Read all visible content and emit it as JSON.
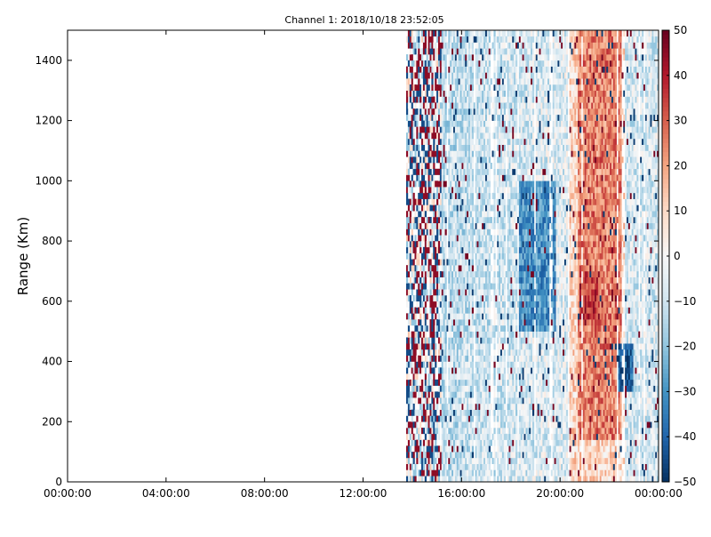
{
  "chart_data": {
    "type": "heatmap",
    "title": "Channel 1: 2018/10/18 23:52:05",
    "xlabel": "",
    "ylabel": "Range (Km)",
    "x_ticks": [
      "00:00:00",
      "04:00:00",
      "08:00:00",
      "12:00:00",
      "16:00:00",
      "20:00:00",
      "00:00:00"
    ],
    "x_range_hours": [
      0,
      24
    ],
    "y_ticks": [
      0,
      200,
      400,
      600,
      800,
      1000,
      1200,
      1400
    ],
    "ylim": [
      0,
      1500
    ],
    "data_x_range_hours": [
      13.75,
      24
    ],
    "colorbar": {
      "colormap": "RdBu_r",
      "range": [
        -50,
        50
      ],
      "ticks": [
        50,
        40,
        30,
        20,
        10,
        0,
        -10,
        -20,
        -30,
        -40,
        -50
      ]
    },
    "features": [
      {
        "desc": "positive band",
        "hours": [
          20.7,
          22.5
        ],
        "range": [
          150,
          1500
        ],
        "value": 25
      },
      {
        "desc": "strong positive core",
        "hours": [
          20.8,
          21.6
        ],
        "range": [
          550,
          700
        ],
        "value": 35
      },
      {
        "desc": "strong negative core",
        "hours": [
          22.3,
          23.0
        ],
        "range": [
          300,
          450
        ],
        "value": -40
      },
      {
        "desc": "negative band",
        "hours": [
          18.3,
          19.8
        ],
        "range": [
          500,
          1000
        ],
        "value": -30
      },
      {
        "desc": "noisy speckle region",
        "hours": [
          13.75,
          15.2
        ],
        "range": [
          0,
          1500
        ],
        "value": 0
      }
    ]
  }
}
